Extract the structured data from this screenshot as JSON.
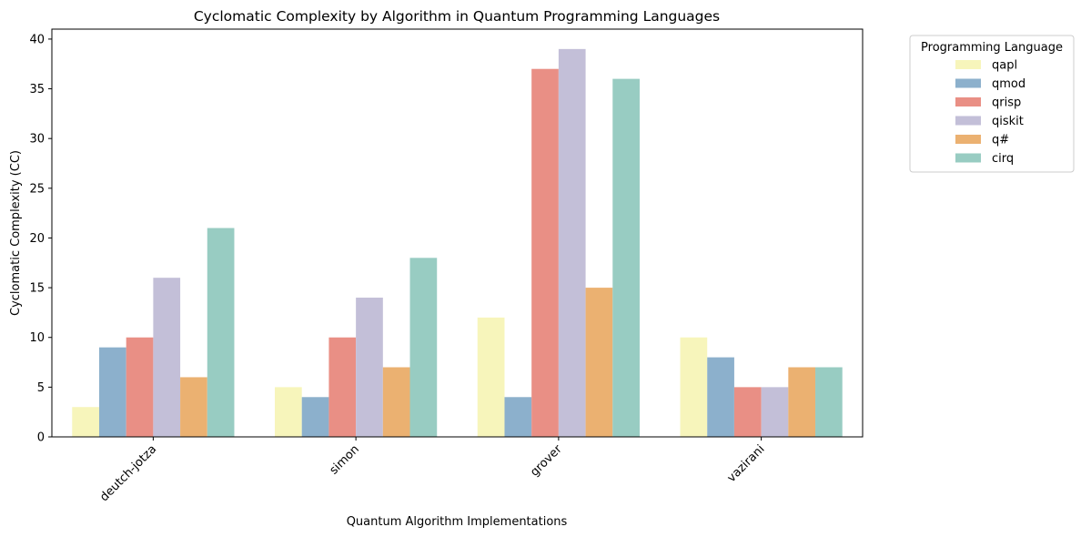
{
  "chart_data": {
    "type": "bar",
    "title": "Cyclomatic Complexity by Algorithm in Quantum Programming Languages",
    "xlabel": "Quantum Algorithm Implementations",
    "ylabel": "Cyclomatic Complexity (CC)",
    "categories": [
      "deutch-jotza",
      "simon",
      "grover",
      "vazirani"
    ],
    "ylim": [
      0,
      41
    ],
    "yticks": [
      0,
      5,
      10,
      15,
      20,
      25,
      30,
      35,
      40
    ],
    "grid": false,
    "legend": {
      "title": "Programming Language",
      "placement": "outside-top-right"
    },
    "series": [
      {
        "name": "qapl",
        "color": "#f7f5bb",
        "values": [
          3,
          5,
          12,
          10
        ]
      },
      {
        "name": "qmod",
        "color": "#8cb0cc",
        "values": [
          9,
          4,
          4,
          8
        ]
      },
      {
        "name": "qrisp",
        "color": "#e98f85",
        "values": [
          10,
          10,
          37,
          5
        ]
      },
      {
        "name": "qiskit",
        "color": "#c3bfd8",
        "values": [
          16,
          14,
          39,
          5
        ]
      },
      {
        "name": "q#",
        "color": "#ebb171",
        "values": [
          6,
          7,
          15,
          7
        ]
      },
      {
        "name": "cirq",
        "color": "#98ccc2",
        "values": [
          21,
          18,
          36,
          7
        ]
      }
    ]
  }
}
